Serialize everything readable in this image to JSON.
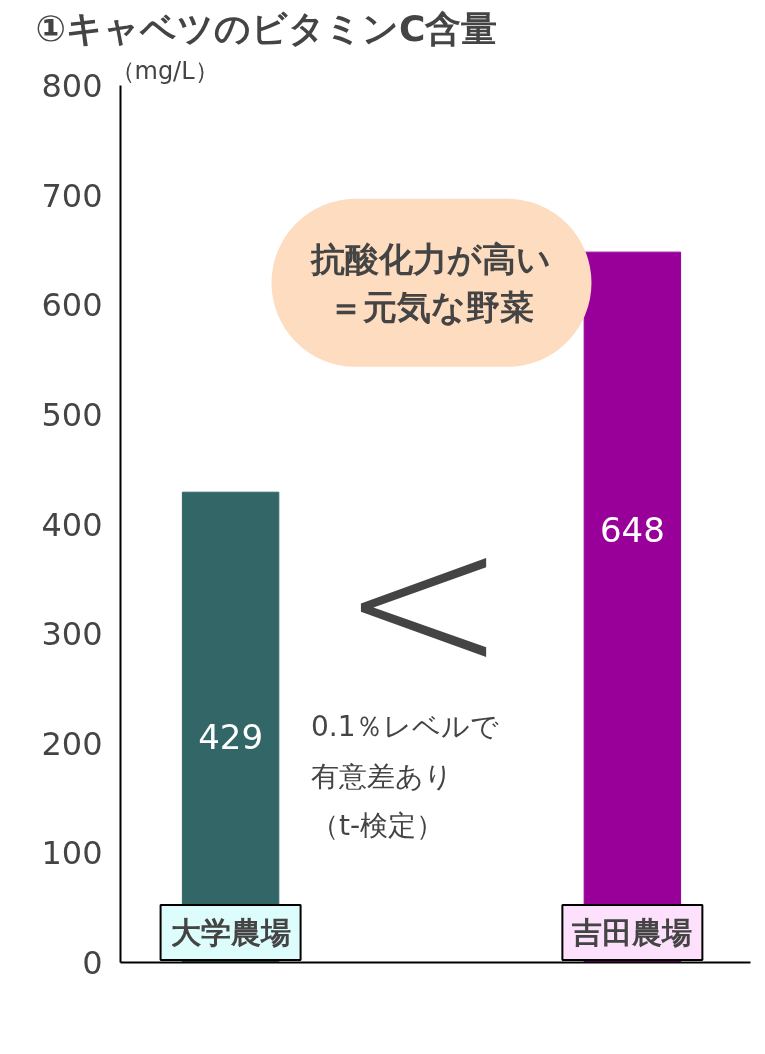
{
  "chart_data": {
    "type": "bar",
    "title": "①キャベツのビタミンC含量",
    "ylabel": "（mg/L）",
    "categories": [
      "大学農場",
      "吉田農場"
    ],
    "values": [
      429,
      648
    ],
    "colors": [
      "#336666",
      "#990099"
    ],
    "ylim": [
      0,
      800
    ],
    "yticks": [
      0,
      100,
      200,
      300,
      400,
      500,
      600,
      700,
      800
    ],
    "data_labels": true,
    "grid": false,
    "annotations": [
      "抗酸化力が高い",
      "＝元気な野菜",
      "<",
      "0.1％レベルで",
      "有意差あり",
      "（t-検定）"
    ]
  }
}
